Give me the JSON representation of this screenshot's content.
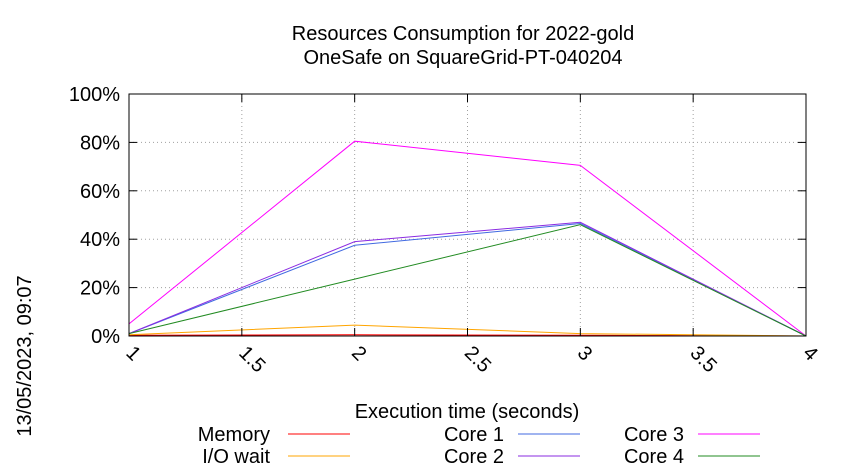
{
  "chart_data": {
    "type": "line",
    "title": [
      "Resources Consumption for 2022-gold",
      "OneSafe on SquareGrid-PT-040204"
    ],
    "xlabel": "Execution time (seconds)",
    "ylabel": "",
    "timestamp": "13/05/2023, 09:07",
    "xlim": [
      1,
      4
    ],
    "ylim": [
      0,
      100
    ],
    "x_ticks": [
      1,
      1.5,
      2,
      2.5,
      3,
      3.5,
      4
    ],
    "y_ticks": [
      0,
      20,
      40,
      60,
      80,
      100
    ],
    "x_tick_labels": [
      "1",
      "1.5",
      "2",
      "2.5",
      "3",
      "3.5",
      "4"
    ],
    "y_tick_labels": [
      "0%",
      "20%",
      "40%",
      "60%",
      "80%",
      "100%"
    ],
    "grid": true,
    "legend_position": "bottom",
    "series": [
      {
        "name": "Memory",
        "color": "#ff0000",
        "x": [
          1,
          2,
          3,
          4
        ],
        "y": [
          0.3,
          0.5,
          0.3,
          0
        ]
      },
      {
        "name": "I/O wait",
        "color": "#ffa500",
        "x": [
          1,
          2,
          3,
          4
        ],
        "y": [
          0.5,
          4.5,
          1.0,
          0
        ]
      },
      {
        "name": "Core 1",
        "color": "#4169e1",
        "x": [
          1,
          2,
          3,
          4
        ],
        "y": [
          1,
          37.5,
          46.5,
          0
        ]
      },
      {
        "name": "Core 2",
        "color": "#8a2be2",
        "x": [
          1,
          2,
          3,
          4
        ],
        "y": [
          1,
          39,
          47,
          0
        ]
      },
      {
        "name": "Core 3",
        "color": "#ff00ff",
        "x": [
          1,
          2,
          3,
          4
        ],
        "y": [
          5,
          80.5,
          70.5,
          0
        ]
      },
      {
        "name": "Core 4",
        "color": "#228b22",
        "x": [
          1,
          2,
          3,
          4
        ],
        "y": [
          1,
          23.5,
          46,
          0
        ]
      }
    ]
  }
}
